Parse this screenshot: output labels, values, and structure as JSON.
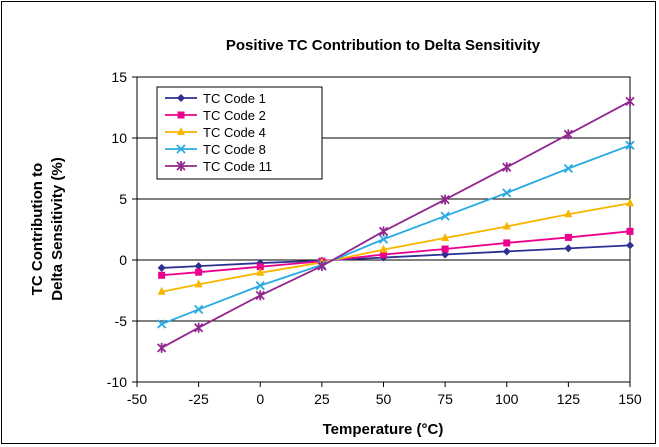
{
  "chart_data": {
    "type": "line",
    "title": "Positive TC Contribution to Delta Sensitivity",
    "xlabel": "Temperature (°C)",
    "ylabel": [
      "TC Contribution to",
      "Delta Sensitivity (%)"
    ],
    "xlim": [
      -50,
      150
    ],
    "ylim": [
      -10,
      15
    ],
    "x_ticks": [
      -50,
      -25,
      0,
      25,
      50,
      75,
      100,
      125,
      150
    ],
    "y_ticks": [
      -10,
      -5,
      0,
      5,
      10,
      15
    ],
    "grid": "horizontal",
    "legend_position": "top-left",
    "x": [
      -40,
      -25,
      0,
      25,
      50,
      75,
      100,
      125,
      150
    ],
    "series": [
      {
        "name": "TC Code 1",
        "color": "#2E3192",
        "marker": "diamond",
        "values": [
          -0.65,
          -0.5,
          -0.25,
          -0.05,
          0.2,
          0.45,
          0.7,
          0.95,
          1.2
        ]
      },
      {
        "name": "TC Code 2",
        "color": "#EC008C",
        "marker": "square",
        "values": [
          -1.25,
          -1.0,
          -0.55,
          -0.1,
          0.45,
          0.9,
          1.4,
          1.85,
          2.35
        ]
      },
      {
        "name": "TC Code 4",
        "color": "#F7B500",
        "marker": "triangle",
        "values": [
          -2.6,
          -2.0,
          -1.05,
          -0.2,
          0.85,
          1.8,
          2.75,
          3.75,
          4.65
        ]
      },
      {
        "name": "TC Code 8",
        "color": "#29ABE2",
        "marker": "x",
        "values": [
          -5.25,
          -4.05,
          -2.1,
          -0.4,
          1.7,
          3.6,
          5.5,
          7.5,
          9.4
        ]
      },
      {
        "name": "TC Code 11",
        "color": "#92278F",
        "marker": "star",
        "values": [
          -7.2,
          -5.55,
          -2.9,
          -0.5,
          2.35,
          4.95,
          7.6,
          10.3,
          13.0
        ]
      }
    ]
  }
}
